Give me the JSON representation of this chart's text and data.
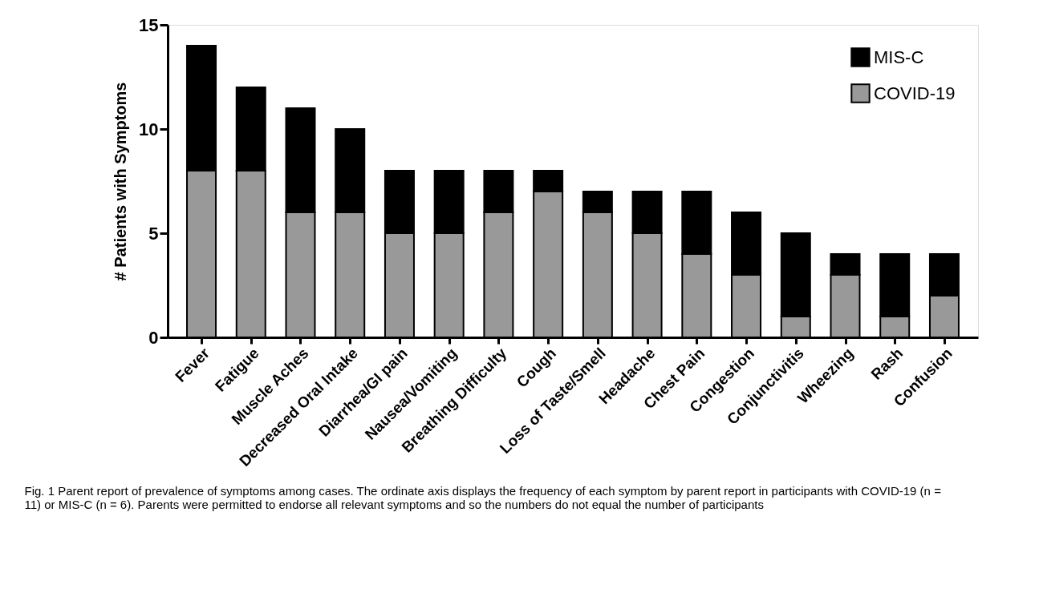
{
  "chart_data": {
    "type": "bar",
    "stacked": true,
    "ylabel": "# Patients with Symptoms",
    "categories": [
      "Fever",
      "Fatigue",
      "Muscle Aches",
      "Decreased Oral Intake",
      "Diarrhea/GI pain",
      "Nausea/Vomiting",
      "Breathing Difficulty",
      "Cough",
      "Loss of Taste/Smell",
      "Headache",
      "Chest Pain",
      "Congestion",
      "Conjunctivitis",
      "Wheezing",
      "Rash",
      "Confusion"
    ],
    "series": [
      {
        "name": "COVID-19",
        "color": "#999999",
        "values": [
          8,
          8,
          6,
          6,
          5,
          5,
          6,
          7,
          6,
          5,
          4,
          3,
          1,
          3,
          1,
          2
        ]
      },
      {
        "name": "MIS-C",
        "color": "#000000",
        "values": [
          6,
          4,
          5,
          4,
          3,
          3,
          2,
          1,
          1,
          2,
          3,
          3,
          4,
          1,
          3,
          2
        ]
      }
    ],
    "ylim": [
      0,
      15
    ],
    "yticks": [
      0,
      5,
      10,
      15
    ],
    "grid": false,
    "legend": "top right",
    "annotations": [
      "Fig. 1  Parent report of prevalence of symptoms among cases. The ordinate axis displays the frequency of each symptom by parent report in participants with COVID-19 (n = 11) or MIS-C (n = 6). Parents were permitted to endorse all relevant symptoms and so the numbers do not equal the number of participants"
    ]
  }
}
